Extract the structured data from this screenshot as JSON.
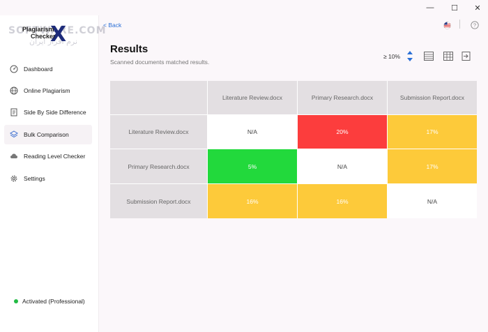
{
  "window": {
    "minimize": "—",
    "maximize": "☐",
    "close": "✕"
  },
  "logo": {
    "line1": "Plagiarism",
    "line2": "Checker",
    "mark": "X",
    "watermark1": "SOFTWARE.COM",
    "watermark2": "نرم افزار ایران"
  },
  "sidebar": {
    "items": [
      {
        "label": "Dashboard",
        "icon": "dashboard-icon"
      },
      {
        "label": "Online Plagiarism",
        "icon": "globe-icon"
      },
      {
        "label": "Side By Side Difference",
        "icon": "document-icon"
      },
      {
        "label": "Bulk Comparison",
        "icon": "layers-icon",
        "active": true
      },
      {
        "label": "Reading Level Checker",
        "icon": "cloud-icon"
      },
      {
        "label": "Settings",
        "icon": "gear-icon"
      }
    ],
    "status": "Activated (Professional)"
  },
  "header": {
    "back": "< Back",
    "help": "?"
  },
  "main": {
    "title": "Results",
    "subtitle": "Scanned documents matched results.",
    "threshold": "≥ 10%"
  },
  "colors": {
    "red": "#fc3d3d",
    "green": "#22d93c",
    "yellow": "#fdca3a",
    "accent": "#2a6fd6"
  },
  "matrix": {
    "columns": [
      "Literature Review.docx",
      "Primary Research.docx",
      "Submission Report.docx"
    ],
    "rows": [
      {
        "label": "Literature Review.docx",
        "cells": [
          "N/A",
          "20%",
          "17%"
        ]
      },
      {
        "label": "Primary Research.docx",
        "cells": [
          "5%",
          "N/A",
          "17%"
        ]
      },
      {
        "label": "Submission Report.docx",
        "cells": [
          "16%",
          "16%",
          "N/A"
        ]
      }
    ]
  }
}
